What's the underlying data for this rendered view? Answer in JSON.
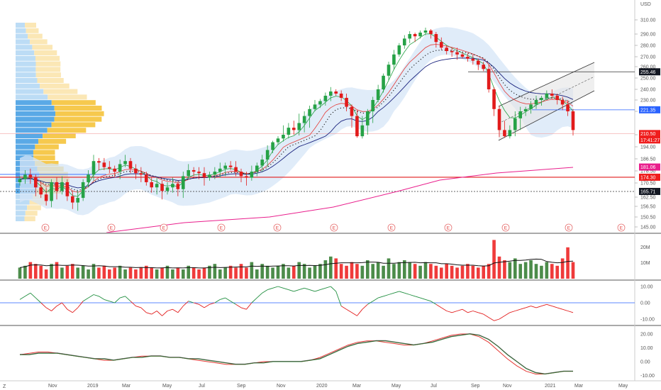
{
  "chart_data": [
    {
      "type": "candlestick",
      "currency": "USD",
      "price_axis": {
        "range": [
          142,
          320
        ],
        "ticks": [
          145.0,
          150.5,
          156.5,
          162.5,
          170.5,
          178.5,
          186.5,
          194.0,
          210.0,
          220.0,
          230.0,
          240.0,
          250.0,
          260.0,
          270.0,
          280.0,
          290.0,
          310.0
        ]
      },
      "x_axis": {
        "labels": [
          "Nov",
          "2019",
          "Mar",
          "May",
          "Jul",
          "Sep",
          "Nov",
          "2020",
          "Mar",
          "May",
          "Jul",
          "Sep",
          "Nov",
          "2021",
          "Mar",
          "May"
        ]
      },
      "price_tags": [
        {
          "value": "255.46",
          "color": "#131722"
        },
        {
          "value": "221.35",
          "color": "#2962ff"
        },
        {
          "value": "210.50",
          "color": "#ef1e1e"
        },
        {
          "value": "17:41:27",
          "color": "#ef1e1e"
        },
        {
          "value": "181.06",
          "color": "#e91e8c"
        },
        {
          "value": "174.30",
          "color": "#ef1e1e"
        },
        {
          "value": "165.71",
          "color": "#131722"
        }
      ],
      "earnings_marker": "E",
      "close_series": [
        173,
        176,
        174,
        168,
        164,
        160,
        171,
        166,
        171,
        163,
        159,
        162,
        171,
        176,
        185,
        184,
        181,
        180,
        178,
        183,
        185,
        180,
        177,
        176,
        171,
        168,
        170,
        166,
        168,
        170,
        167,
        175,
        179,
        178,
        177,
        174,
        176,
        178,
        180,
        182,
        181,
        178,
        175,
        174,
        178,
        182,
        186,
        192,
        200,
        205,
        210,
        213,
        212,
        215,
        218,
        222,
        226,
        229,
        234,
        238,
        236,
        232,
        224,
        218,
        208,
        214,
        220,
        230,
        240,
        252,
        262,
        272,
        280,
        286,
        290,
        288,
        292,
        295,
        290,
        283,
        278,
        275,
        274,
        272,
        270,
        268,
        266,
        262,
        258,
        240,
        222,
        212,
        208,
        212,
        217,
        220,
        222,
        226,
        230,
        232,
        236,
        234,
        230,
        226,
        220,
        212
      ]
    },
    {
      "type": "bar",
      "name": "volume",
      "axis_ticks": [
        "20M",
        "10M"
      ],
      "values_millions": [
        6,
        7,
        9,
        8,
        7,
        5,
        8,
        9,
        6,
        7,
        8,
        6,
        7,
        5,
        8,
        6,
        7,
        5,
        6,
        7,
        5,
        6,
        5,
        6,
        7,
        6,
        5,
        6,
        7,
        5,
        6,
        5,
        7,
        6,
        5,
        6,
        7,
        8,
        5,
        6,
        7,
        6,
        8,
        6,
        9,
        5,
        8,
        7,
        6,
        7,
        8,
        6,
        7,
        9,
        8,
        6,
        7,
        8,
        10,
        12,
        11,
        8,
        7,
        9,
        8,
        7,
        10,
        8,
        9,
        7,
        11,
        8,
        9,
        10,
        9,
        8,
        7,
        9,
        8,
        7,
        6,
        8,
        7,
        6,
        7,
        8,
        7,
        6,
        7,
        8,
        21,
        12,
        10,
        9,
        11,
        8,
        9,
        10,
        8,
        7,
        9,
        8,
        7,
        11,
        17,
        9
      ]
    },
    {
      "type": "line",
      "name": "oscillator",
      "axis_ticks": [
        "10.00",
        "0.00",
        "-10.00"
      ],
      "values": [
        2,
        4,
        6,
        3,
        0,
        -3,
        -5,
        -2,
        0,
        -4,
        -6,
        -3,
        1,
        3,
        5,
        4,
        2,
        1,
        0,
        3,
        4,
        1,
        -2,
        -3,
        -6,
        -7,
        -5,
        -8,
        -5,
        -4,
        -6,
        -2,
        1,
        0,
        -1,
        -3,
        -1,
        0,
        2,
        3,
        1,
        -1,
        -3,
        -4,
        0,
        3,
        6,
        8,
        9,
        10,
        9,
        8,
        7,
        8,
        9,
        8,
        7,
        8,
        9,
        10,
        7,
        -2,
        -4,
        -6,
        -8,
        -4,
        -1,
        1,
        3,
        4,
        5,
        6,
        7,
        6,
        5,
        4,
        3,
        2,
        1,
        -1,
        -3,
        -5,
        -6,
        -5,
        -4,
        -6,
        -5,
        -6,
        -7,
        -9,
        -11,
        -10,
        -8,
        -6,
        -5,
        -4,
        -3,
        -2,
        -3,
        -2,
        -1,
        -2,
        -3,
        -4,
        -5,
        -6
      ]
    },
    {
      "type": "line",
      "name": "macd",
      "axis_ticks": [
        "20.00",
        "10.00",
        "0.00",
        "-10.00"
      ],
      "series": [
        {
          "values": [
            5,
            6,
            7,
            7,
            6,
            5,
            4,
            3,
            2,
            1,
            1,
            2,
            3,
            4,
            4,
            4,
            3,
            3,
            2,
            1,
            0,
            -1,
            -2,
            -2,
            -2,
            -1,
            0,
            0,
            0,
            0,
            0,
            1,
            3,
            6,
            9,
            12,
            14,
            15,
            15,
            14,
            13,
            12,
            12,
            13,
            15,
            17,
            19,
            20,
            20,
            18,
            14,
            8,
            2,
            -3,
            -7,
            -9,
            -9,
            -8,
            -7,
            -7
          ]
        },
        {
          "values": [
            5,
            5,
            6,
            6,
            6,
            5,
            4,
            3,
            2,
            2,
            1,
            2,
            3,
            3,
            4,
            4,
            3,
            3,
            2,
            2,
            1,
            0,
            -1,
            -2,
            -2,
            -1,
            -1,
            0,
            0,
            0,
            0,
            1,
            2,
            5,
            8,
            11,
            13,
            14,
            15,
            15,
            14,
            13,
            12,
            13,
            14,
            16,
            18,
            19,
            20,
            19,
            16,
            11,
            5,
            0,
            -5,
            -8,
            -9,
            -8,
            -7,
            -7
          ]
        }
      ]
    }
  ],
  "footer": {
    "left_label": "Z"
  }
}
